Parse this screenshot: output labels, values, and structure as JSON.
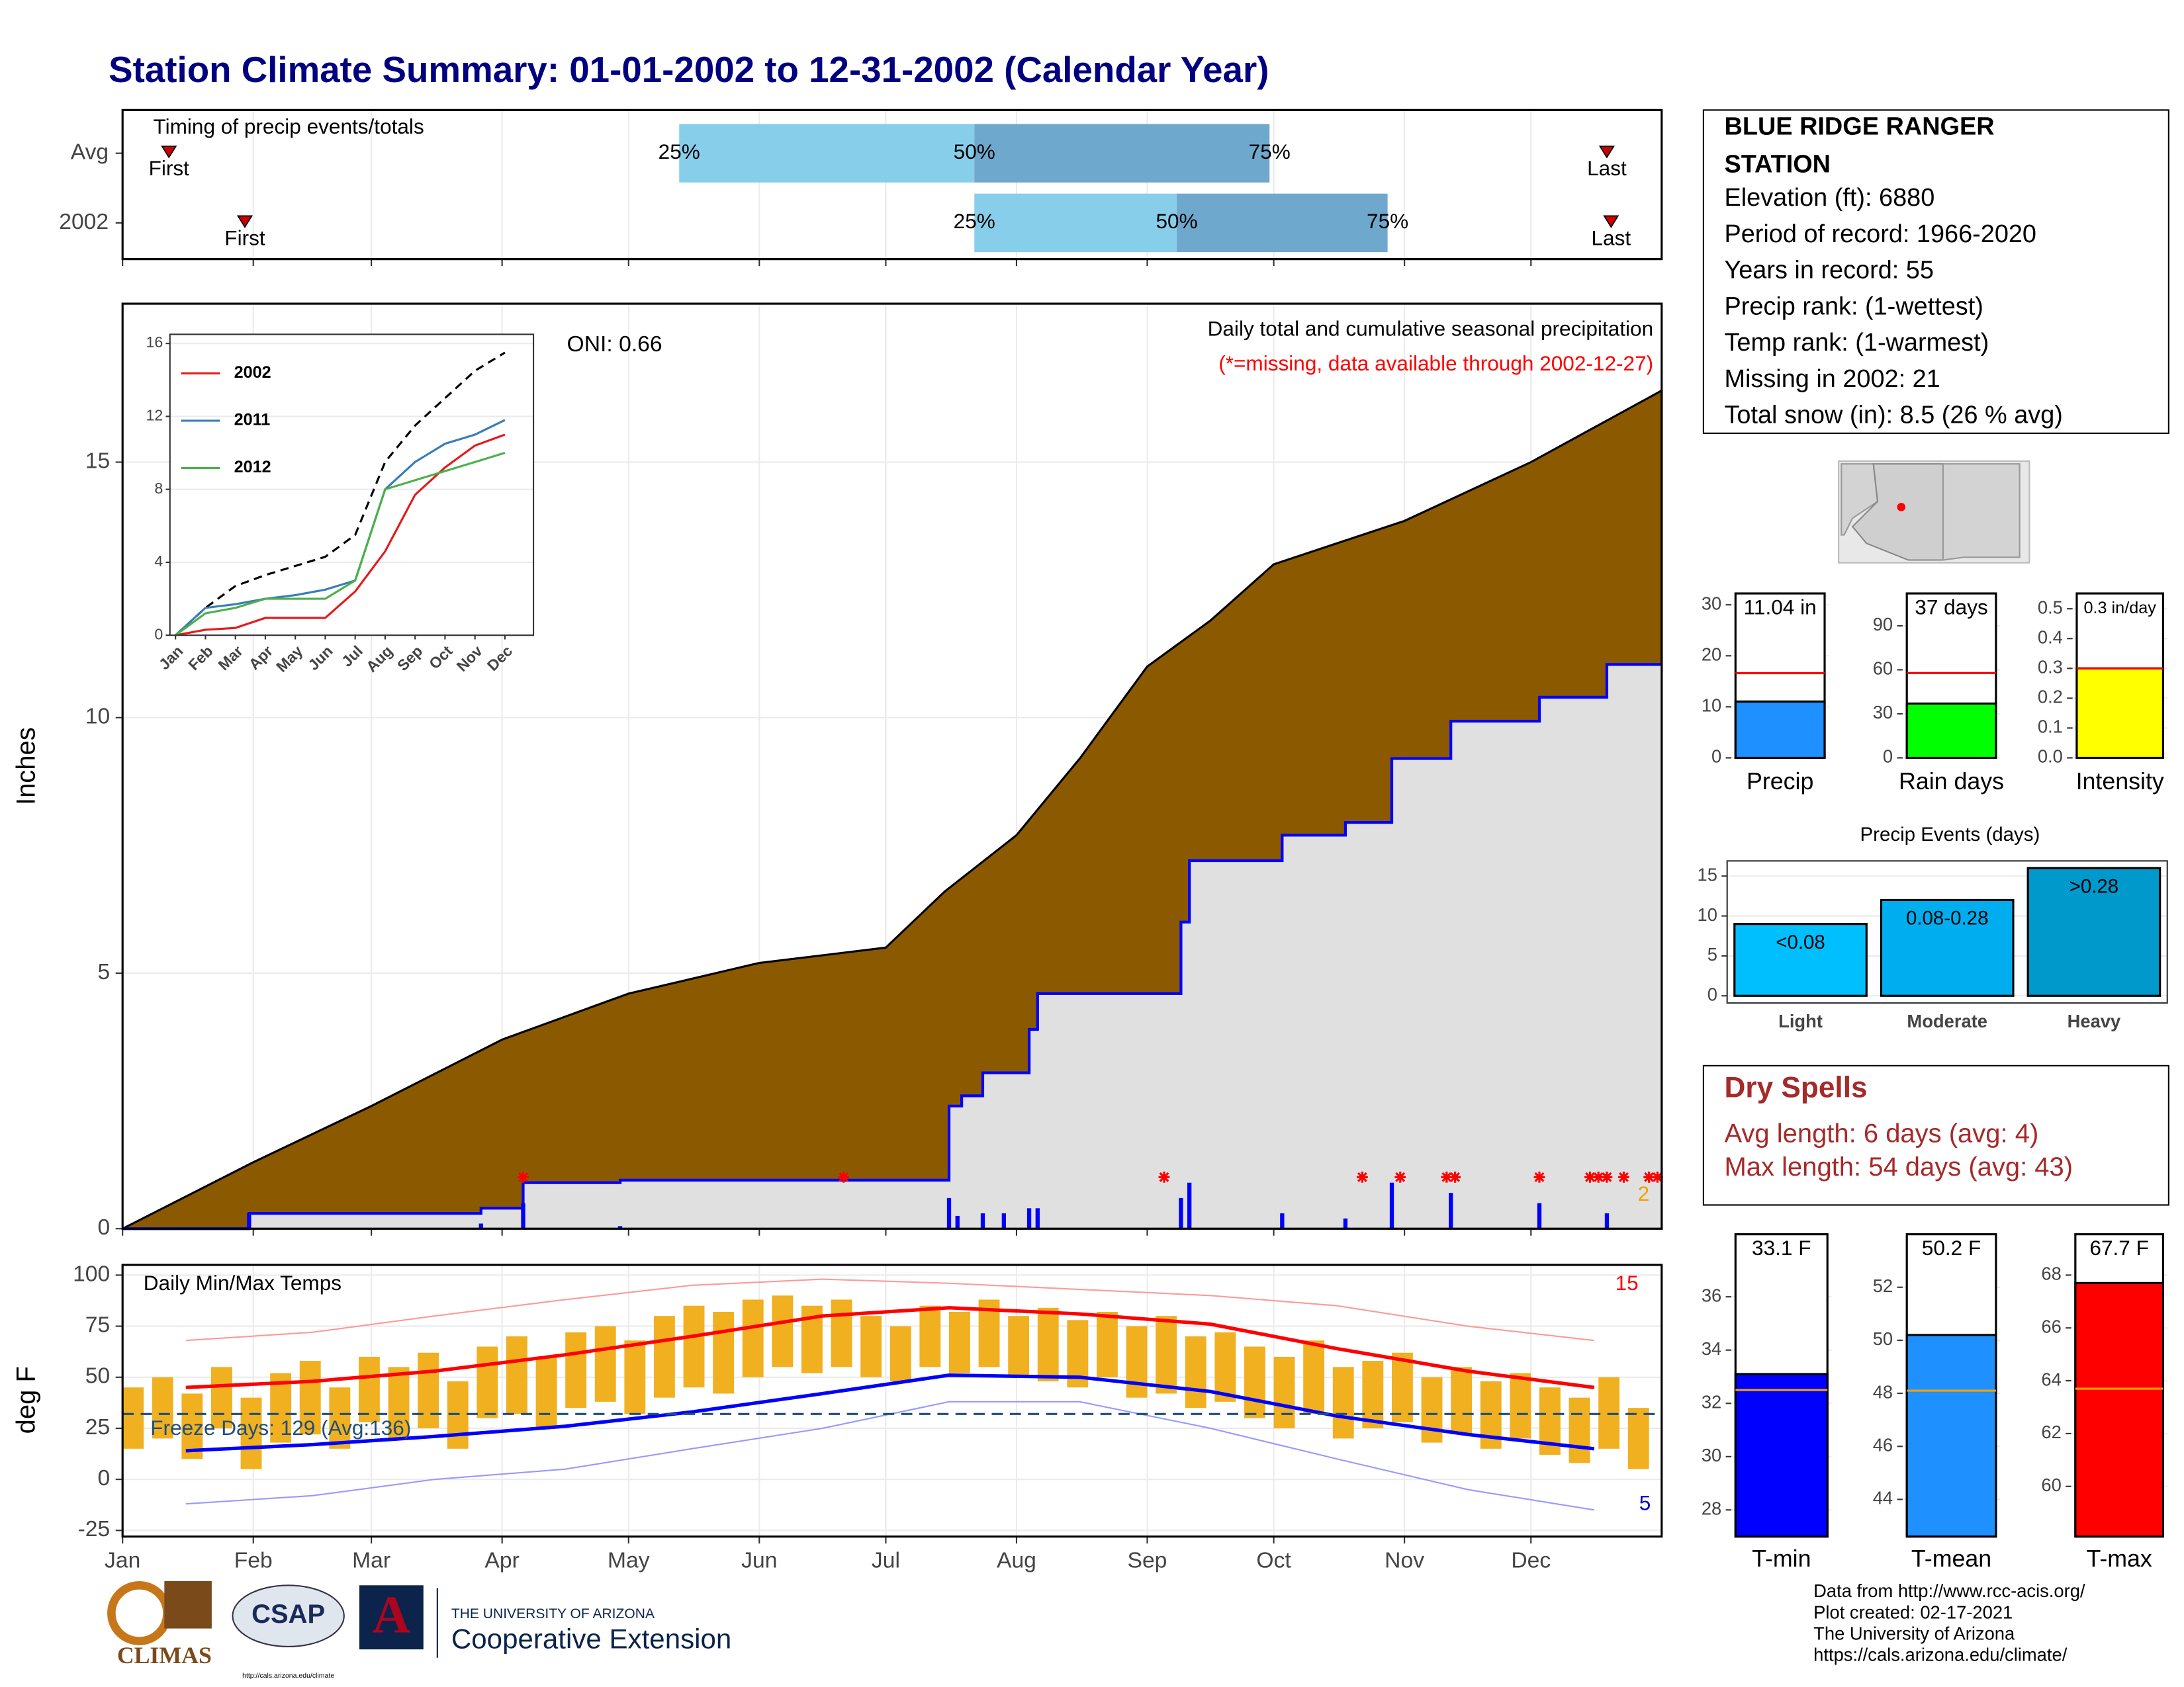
{
  "title": "Station Climate Summary: 01-01-2002 to 12-31-2002 (Calendar Year)",
  "timing": {
    "title": "Timing of precip events/totals",
    "xlim": [
      1,
      366
    ],
    "labels": {
      "first": "First",
      "last": "Last",
      "p25": "25%",
      "p50": "50%",
      "p75": "75%"
    },
    "rows": [
      {
        "name": "Avg",
        "first": 12,
        "p25": 133,
        "p50": 203,
        "p75": 273,
        "last": 353
      },
      {
        "name": "2002",
        "first": 30,
        "p25": 203,
        "p50": 251,
        "p75": 301,
        "last": 354
      }
    ]
  },
  "chart_data": [
    {
      "type": "area",
      "ylabel": "Inches",
      "oni": "ONI: 0.66",
      "subtitle": "Daily total and cumulative seasonal precipitation",
      "missing_note": "(*=missing, data available through 2002-12-27)",
      "corner_label": "2",
      "xlim": [
        1,
        366
      ],
      "ylim": [
        0,
        18.1
      ],
      "yticks": [
        0,
        5,
        10,
        15
      ],
      "grid": true,
      "series": [
        {
          "color": "#8b5a00",
          "style": "fill",
          "x": [
            1,
            32,
            60,
            91,
            121,
            152,
            182,
            196,
            213,
            228,
            244,
            259,
            274,
            305,
            335,
            366
          ],
          "values": [
            0,
            1.3,
            2.4,
            3.7,
            4.6,
            5.2,
            5.5,
            6.6,
            7.7,
            9.2,
            11.0,
            11.9,
            13.0,
            13.85,
            15.0,
            16.4
          ]
        },
        {
          "color": "#0000ff",
          "style": "step",
          "x": [
            1,
            31,
            86,
            96,
            119,
            197,
            200,
            205,
            216,
            218,
            252,
            254,
            276,
            291,
            302,
            316,
            337,
            353
          ],
          "values": [
            0,
            0.3,
            0.4,
            0.9,
            0.95,
            2.4,
            2.6,
            3.05,
            3.9,
            4.6,
            6.0,
            7.2,
            7.7,
            7.95,
            9.2,
            9.93,
            10.4,
            11.04
          ]
        }
      ],
      "daily": {
        "color": "#0000ff",
        "x": [
          31,
          86,
          96,
          119,
          197,
          199,
          205,
          210,
          216,
          218,
          252,
          254,
          276,
          291,
          302,
          316,
          337,
          353
        ],
        "values": [
          0.3,
          0.1,
          0.5,
          0.05,
          0.6,
          0.25,
          0.3,
          0.3,
          0.4,
          0.4,
          0.6,
          0.9,
          0.3,
          0.2,
          0.9,
          0.7,
          0.5,
          0.3
        ]
      },
      "missing": {
        "color": "#ff0000",
        "x": [
          96,
          172,
          248,
          295,
          304,
          315,
          317,
          337,
          349,
          351,
          353,
          357,
          363,
          365
        ]
      }
    },
    {
      "type": "line",
      "categories": [
        "Jan",
        "Feb",
        "Mar",
        "Apr",
        "May",
        "Jun",
        "Jul",
        "Aug",
        "Sep",
        "Oct",
        "Nov",
        "Dec"
      ],
      "ylim": [
        0,
        16.5
      ],
      "yticks": [
        0,
        4,
        8,
        12,
        16
      ],
      "grid": true,
      "series": [
        {
          "color": "#000000",
          "style": "dashed",
          "values": [
            0,
            1.5,
            2.7,
            3.3,
            3.8,
            4.3,
            5.5,
            9.5,
            11.5,
            13.0,
            14.5,
            15.5
          ]
        },
        {
          "name": "2002",
          "color": "#e41a1c",
          "values": [
            0,
            0.3,
            0.4,
            0.95,
            0.95,
            0.95,
            2.4,
            4.6,
            7.7,
            9.2,
            10.4,
            11.0
          ]
        },
        {
          "name": "2011",
          "color": "#377eb8",
          "values": [
            0,
            1.5,
            1.7,
            2.0,
            2.2,
            2.5,
            3.0,
            8.0,
            9.5,
            10.5,
            11.0,
            11.8
          ]
        },
        {
          "name": "2012",
          "color": "#4daf4a",
          "values": [
            0,
            1.2,
            1.5,
            2.0,
            2.0,
            2.0,
            3.0,
            8.0,
            8.5,
            9.0,
            9.5,
            10.0
          ]
        }
      ]
    },
    {
      "type": "range",
      "title": "Daily Min/Max Temps",
      "ylabel": "deg F",
      "corner_high": "15",
      "corner_low": "5",
      "xlim": [
        1,
        366
      ],
      "xticks": [
        {
          "value": 1,
          "label": "Jan"
        },
        {
          "value": 32,
          "label": "Feb"
        },
        {
          "value": 60,
          "label": "Mar"
        },
        {
          "value": 91,
          "label": "Apr"
        },
        {
          "value": 121,
          "label": "May"
        },
        {
          "value": 152,
          "label": "Jun"
        },
        {
          "value": 182,
          "label": "Jul"
        },
        {
          "value": 213,
          "label": "Aug"
        },
        {
          "value": 244,
          "label": "Sep"
        },
        {
          "value": 274,
          "label": "Oct"
        },
        {
          "value": 305,
          "label": "Nov"
        },
        {
          "value": 335,
          "label": "Dec"
        }
      ],
      "ylim": [
        -28,
        105
      ],
      "yticks": [
        -25,
        0,
        25,
        50,
        75,
        100
      ],
      "grid": true,
      "freeze": {
        "value": 32,
        "label": "Freeze Days: 129 (Avg:136)",
        "color": "#1f4e79"
      },
      "bars": {
        "color": "#f0b020",
        "x": [
          1,
          8,
          15,
          22,
          29,
          36,
          43,
          50,
          57,
          64,
          71,
          78,
          85,
          92,
          99,
          106,
          113,
          120,
          127,
          134,
          141,
          148,
          155,
          162,
          169,
          176,
          183,
          190,
          197,
          204,
          211,
          218,
          225,
          232,
          239,
          246,
          253,
          260,
          267,
          274,
          281,
          288,
          295,
          302,
          309,
          316,
          323,
          330,
          337,
          344,
          351,
          358
        ],
        "max": [
          45,
          50,
          42,
          55,
          40,
          52,
          58,
          45,
          60,
          55,
          62,
          48,
          65,
          70,
          60,
          72,
          75,
          68,
          80,
          85,
          82,
          88,
          90,
          85,
          88,
          80,
          75,
          85,
          82,
          88,
          80,
          84,
          78,
          82,
          75,
          80,
          70,
          72,
          65,
          60,
          68,
          55,
          58,
          62,
          50,
          55,
          48,
          52,
          45,
          40,
          50,
          35
        ],
        "min": [
          15,
          20,
          10,
          25,
          5,
          18,
          22,
          15,
          28,
          20,
          25,
          15,
          30,
          32,
          25,
          35,
          38,
          32,
          40,
          45,
          42,
          50,
          55,
          52,
          55,
          50,
          48,
          55,
          52,
          55,
          50,
          48,
          45,
          50,
          40,
          42,
          35,
          38,
          30,
          25,
          32,
          20,
          25,
          28,
          18,
          22,
          15,
          20,
          12,
          8,
          15,
          5
        ]
      },
      "series": [
        {
          "color": "#ff9999",
          "style": "thin",
          "x": [
            16,
            46,
            75,
            106,
            136,
            167,
            197,
            228,
            259,
            289,
            320,
            350
          ],
          "values": [
            68,
            72,
            80,
            88,
            95,
            98,
            96,
            93,
            90,
            85,
            75,
            68
          ]
        },
        {
          "color": "#9999ff",
          "style": "thin",
          "x": [
            16,
            46,
            75,
            106,
            136,
            167,
            197,
            228,
            259,
            289,
            320,
            350
          ],
          "values": [
            -12,
            -8,
            0,
            5,
            15,
            25,
            38,
            38,
            25,
            10,
            -5,
            -15
          ]
        },
        {
          "color": "#ff0000",
          "style": "thick",
          "x": [
            16,
            46,
            75,
            106,
            136,
            167,
            197,
            228,
            259,
            289,
            320,
            350
          ],
          "values": [
            45,
            48,
            53,
            61,
            70,
            80,
            84,
            81,
            76,
            64,
            53,
            45
          ]
        },
        {
          "color": "#0000ff",
          "style": "thick",
          "x": [
            16,
            46,
            75,
            106,
            136,
            167,
            197,
            228,
            259,
            289,
            320,
            350
          ],
          "values": [
            14,
            17,
            21,
            26,
            33,
            42,
            51,
            50,
            43,
            31,
            22,
            15
          ]
        }
      ]
    },
    {
      "type": "bar",
      "label": "Precip",
      "values": [
        11.04
      ],
      "value_labels": [
        "11.04 in"
      ],
      "avg": 16.6,
      "color": "#1e90ff",
      "avg_color": "#ff0000",
      "ylim": [
        0,
        32.5
      ],
      "yticks": [
        0,
        10,
        20,
        30
      ]
    },
    {
      "type": "bar",
      "label": "Rain days",
      "values": [
        37
      ],
      "value_labels": [
        "37 days"
      ],
      "avg": 57.8,
      "color": "#00ff00",
      "avg_color": "#ff0000",
      "ylim": [
        0,
        113
      ],
      "yticks": [
        0,
        30,
        60,
        90
      ]
    },
    {
      "type": "bar",
      "label": "Intensity",
      "values": [
        0.3
      ],
      "value_labels": [
        "0.3 in/day"
      ],
      "avg": 0.3,
      "color": "#ffff00",
      "avg_color": "#ff0000",
      "ylim": [
        0,
        0.556
      ],
      "yticks": [
        {
          "value": 0,
          "label": "0.0"
        },
        0.1,
        0.2,
        0.3,
        0.4,
        0.5
      ]
    },
    {
      "type": "events",
      "title": "Precip Events (days)",
      "categories": [
        "Light",
        "Moderate",
        "Heavy"
      ],
      "values": [
        9,
        12,
        16
      ],
      "bin_labels": [
        "<0.08",
        "0.08-0.28",
        ">0.28"
      ],
      "colors": [
        "#00bfff",
        "#00aeef",
        "#0099cc"
      ],
      "ylim": [
        -0.9,
        16.9
      ],
      "yticks": [
        0,
        5,
        10,
        15
      ],
      "grid": true
    },
    {
      "type": "bar",
      "label": "T-min",
      "values": [
        33.1
      ],
      "value_labels": [
        "33.1 F"
      ],
      "avg": 32.5,
      "color": "#0000ff",
      "avg_color": "#f0a000",
      "ylim": [
        27.0,
        38.4
      ],
      "yticks": [
        28,
        30,
        32,
        34,
        36
      ]
    },
    {
      "type": "bar",
      "label": "T-mean",
      "values": [
        50.2
      ],
      "value_labels": [
        "50.2 F"
      ],
      "avg": 48.1,
      "color": "#1e90ff",
      "avg_color": "#f0a000",
      "ylim": [
        42.6,
        54.05
      ],
      "yticks": [
        44,
        46,
        48,
        50,
        52
      ]
    },
    {
      "type": "bar",
      "label": "T-max",
      "values": [
        67.7
      ],
      "value_labels": [
        "67.7 F"
      ],
      "avg": 63.7,
      "color": "#ff0000",
      "avg_color": "#f0a000",
      "ylim": [
        58.1,
        69.6
      ],
      "yticks": [
        60,
        62,
        64,
        66,
        68
      ]
    }
  ],
  "station": {
    "name_lines": [
      "BLUE RIDGE RANGER",
      "STATION"
    ],
    "lines": [
      "Elevation (ft): 6880",
      "Period of record: 1966-2020",
      "Years in record: 55",
      "Precip rank:  (1-wettest)",
      "Temp rank:  (1-warmest)",
      "Missing in 2002: 21",
      "Total snow (in): 8.5 (26 % avg)"
    ]
  },
  "dry_spells": {
    "title": "Dry Spells",
    "lines": [
      "Avg length: 6 days (avg: 4)",
      "Max length: 54 days (avg: 43)"
    ]
  },
  "footer": [
    "Data from http://www.rcc-acis.org/",
    "Plot created: 02-17-2021",
    "The University of Arizona",
    "https://cals.arizona.edu/climate/"
  ],
  "logos": {
    "climas": "CLIMAS",
    "csap": "CSAP",
    "csap_url": "http://cals.arizona.edu/climate",
    "ua_mark": "A",
    "ua": "THE UNIVERSITY OF ARIZONA",
    "coop": "Cooperative Extension"
  }
}
